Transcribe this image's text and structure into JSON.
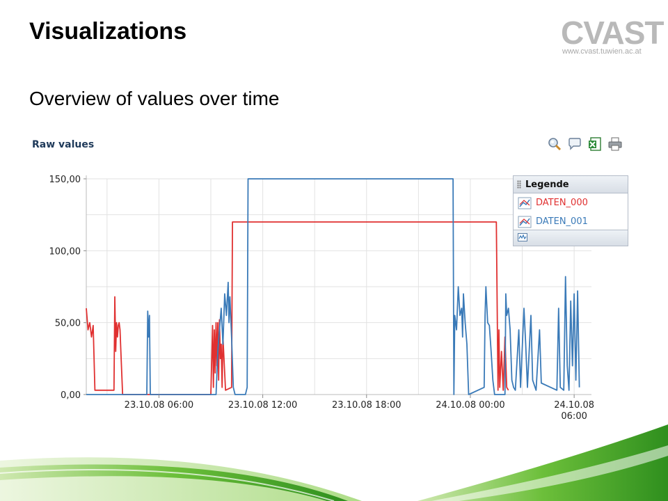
{
  "slide": {
    "title": "Visualizations",
    "subtitle": "Overview of values over time"
  },
  "logo": {
    "text": "CVAST",
    "url": "www.cvast.tuwien.ac.at"
  },
  "panel": {
    "title": "Raw values",
    "toolbar": [
      "zoom-icon",
      "comment-icon",
      "excel-export-icon",
      "print-icon"
    ]
  },
  "legend": {
    "header": "Legende",
    "items": [
      {
        "label": "DATEN_000",
        "color": "#e03030"
      },
      {
        "label": "DATEN_001",
        "color": "#3a7ab8"
      }
    ]
  },
  "chart_data": {
    "type": "line",
    "title": "Raw values",
    "xlabel": "",
    "ylabel": "",
    "ylim": [
      0,
      150
    ],
    "grid": true,
    "legend_position": "top-right",
    "y_ticks": [
      "0,00",
      "50,00",
      "100,00",
      "150,00"
    ],
    "x_ticks": [
      "23.10.08 06:00",
      "23.10.08 12:00",
      "23.10.08 18:00",
      "24.10.08 00:00",
      "24.10.08 06:00"
    ],
    "x_tick_hours": [
      6,
      12,
      18,
      24,
      30
    ],
    "xlim_hours": [
      1.8,
      31.0
    ],
    "series": [
      {
        "name": "DATEN_000",
        "color": "#e03030",
        "points": [
          [
            1.8,
            60
          ],
          [
            1.9,
            45
          ],
          [
            2.0,
            50
          ],
          [
            2.1,
            40
          ],
          [
            2.2,
            48
          ],
          [
            2.3,
            3
          ],
          [
            3.3,
            3
          ],
          [
            3.4,
            3
          ],
          [
            3.45,
            68
          ],
          [
            3.5,
            30
          ],
          [
            3.55,
            50
          ],
          [
            3.6,
            40
          ],
          [
            3.65,
            48
          ],
          [
            3.7,
            50
          ],
          [
            3.75,
            45
          ],
          [
            3.8,
            30
          ],
          [
            3.9,
            0
          ],
          [
            9.0,
            0
          ],
          [
            9.1,
            48
          ],
          [
            9.15,
            5
          ],
          [
            9.2,
            45
          ],
          [
            9.25,
            15
          ],
          [
            9.3,
            50
          ],
          [
            9.35,
            20
          ],
          [
            9.4,
            50
          ],
          [
            9.45,
            10
          ],
          [
            9.5,
            52
          ],
          [
            9.55,
            25
          ],
          [
            9.6,
            35
          ],
          [
            9.65,
            5
          ],
          [
            9.7,
            40
          ],
          [
            9.85,
            3
          ],
          [
            10.2,
            5
          ],
          [
            10.25,
            120
          ],
          [
            25.5,
            120
          ],
          [
            25.6,
            3
          ],
          [
            25.65,
            45
          ],
          [
            25.7,
            5
          ],
          [
            25.8,
            30
          ],
          [
            25.9,
            3
          ],
          [
            26.0,
            40
          ],
          [
            26.1,
            5
          ],
          [
            26.2,
            3
          ]
        ]
      },
      {
        "name": "DATEN_001",
        "color": "#3a7ab8",
        "points": [
          [
            1.8,
            0
          ],
          [
            5.3,
            0
          ],
          [
            5.35,
            58
          ],
          [
            5.4,
            40
          ],
          [
            5.45,
            55
          ],
          [
            5.5,
            0
          ],
          [
            9.3,
            0
          ],
          [
            9.4,
            30
          ],
          [
            9.5,
            45
          ],
          [
            9.6,
            60
          ],
          [
            9.7,
            35
          ],
          [
            9.8,
            70
          ],
          [
            9.9,
            55
          ],
          [
            10.0,
            78
          ],
          [
            10.05,
            50
          ],
          [
            10.1,
            68
          ],
          [
            10.2,
            40
          ],
          [
            10.3,
            5
          ],
          [
            10.4,
            0
          ],
          [
            11.0,
            0
          ],
          [
            11.1,
            5
          ],
          [
            11.15,
            150
          ],
          [
            23.0,
            150
          ],
          [
            23.05,
            0
          ],
          [
            23.1,
            55
          ],
          [
            23.2,
            45
          ],
          [
            23.3,
            75
          ],
          [
            23.4,
            55
          ],
          [
            23.5,
            60
          ],
          [
            23.55,
            40
          ],
          [
            23.6,
            70
          ],
          [
            23.7,
            50
          ],
          [
            23.8,
            35
          ],
          [
            23.9,
            0
          ],
          [
            24.8,
            5
          ],
          [
            24.85,
            55
          ],
          [
            24.9,
            75
          ],
          [
            25.0,
            50
          ],
          [
            25.1,
            48
          ],
          [
            25.2,
            30
          ],
          [
            25.3,
            10
          ],
          [
            25.4,
            0
          ],
          [
            26.0,
            0
          ],
          [
            26.05,
            70
          ],
          [
            26.1,
            55
          ],
          [
            26.2,
            60
          ],
          [
            26.3,
            45
          ],
          [
            26.4,
            10
          ],
          [
            26.5,
            5
          ],
          [
            26.6,
            3
          ],
          [
            26.8,
            45
          ],
          [
            26.9,
            5
          ],
          [
            27.1,
            60
          ],
          [
            27.2,
            35
          ],
          [
            27.3,
            5
          ],
          [
            27.5,
            55
          ],
          [
            27.6,
            10
          ],
          [
            27.8,
            3
          ],
          [
            28.0,
            45
          ],
          [
            28.1,
            8
          ],
          [
            29.0,
            3
          ],
          [
            29.1,
            60
          ],
          [
            29.2,
            5
          ],
          [
            29.4,
            3
          ],
          [
            29.5,
            82
          ],
          [
            29.6,
            20
          ],
          [
            29.7,
            3
          ],
          [
            29.8,
            65
          ],
          [
            29.9,
            20
          ],
          [
            30.0,
            70
          ],
          [
            30.1,
            10
          ],
          [
            30.2,
            72
          ],
          [
            30.3,
            5
          ]
        ]
      }
    ]
  }
}
